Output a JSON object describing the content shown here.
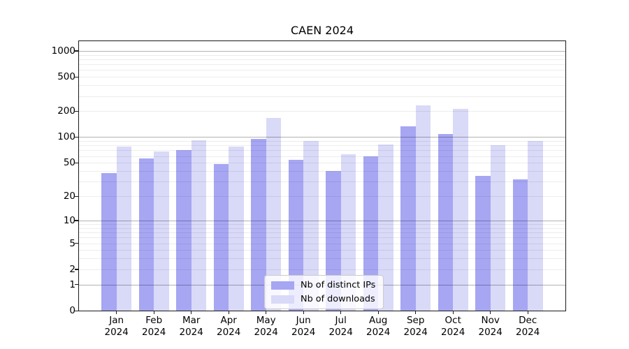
{
  "chart_data": {
    "type": "bar",
    "title": "CAEN 2024",
    "categories": [
      "Jan 2024",
      "Feb 2024",
      "Mar 2024",
      "Apr 2024",
      "May 2024",
      "Jun 2024",
      "Jul 2024",
      "Aug 2024",
      "Sep 2024",
      "Oct 2024",
      "Nov 2024",
      "Dec 2024"
    ],
    "series": [
      {
        "name": "Nb of distinct IPs",
        "color": "#a6a6f3",
        "values": [
          38,
          56,
          70,
          48,
          95,
          54,
          40,
          60,
          134,
          109,
          35,
          32
        ]
      },
      {
        "name": "Nb of downloads",
        "color": "#d9d9f8",
        "values": [
          77,
          68,
          92,
          77,
          168,
          90,
          63,
          82,
          232,
          212,
          80,
          90
        ]
      }
    ],
    "xlabel": "",
    "ylabel": "",
    "yscale": "log10(1+value)",
    "ylim": [
      0,
      1290
    ],
    "yticks": [
      1000,
      500,
      200,
      100,
      50,
      20,
      10,
      5,
      2,
      1,
      0
    ],
    "grid": {
      "on": true,
      "major_lines": [
        1,
        10,
        100,
        1000
      ],
      "minor_decades": [
        1,
        10,
        100
      ],
      "minor_multiples": [
        2,
        3,
        4,
        5,
        6,
        7,
        8,
        9
      ]
    },
    "legend_position": "lower center",
    "bar_colors": {
      "distinct_ips": "#a6a6f3",
      "downloads": "#d9d9f8"
    },
    "grid_major_color": "#b5b5b5",
    "grid_minor_color": "#ececec"
  }
}
